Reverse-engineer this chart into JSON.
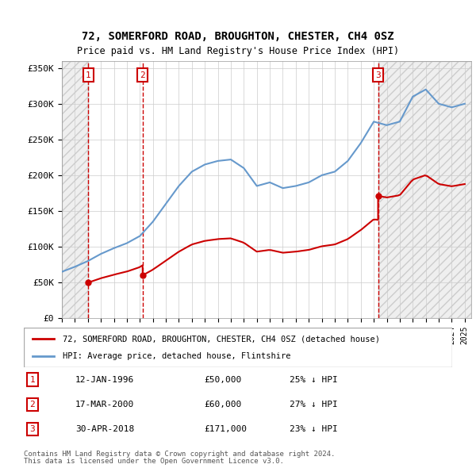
{
  "title": "72, SOMERFORD ROAD, BROUGHTON, CHESTER, CH4 0SZ",
  "subtitle": "Price paid vs. HM Land Registry's House Price Index (HPI)",
  "ylabel_ticks": [
    "£0",
    "£50K",
    "£100K",
    "£150K",
    "£200K",
    "£250K",
    "£300K",
    "£350K"
  ],
  "ytick_vals": [
    0,
    50000,
    100000,
    150000,
    200000,
    250000,
    300000,
    350000
  ],
  "ylim": [
    0,
    360000
  ],
  "xlim_start": 1994.0,
  "xlim_end": 2025.5,
  "sales": [
    {
      "num": 1,
      "date": "12-JAN-1996",
      "price": 50000,
      "year": 1996.04
    },
    {
      "num": 2,
      "date": "17-MAR-2000",
      "price": 60000,
      "year": 2000.21
    },
    {
      "num": 3,
      "date": "30-APR-2018",
      "price": 171000,
      "year": 2018.33
    }
  ],
  "legend_line1": "72, SOMERFORD ROAD, BROUGHTON, CHESTER, CH4 0SZ (detached house)",
  "legend_line2": "HPI: Average price, detached house, Flintshire",
  "footer1": "Contains HM Land Registry data © Crown copyright and database right 2024.",
  "footer2": "This data is licensed under the Open Government Licence v3.0.",
  "hpi_color": "#6699cc",
  "price_color": "#cc0000",
  "sale_marker_color": "#cc0000",
  "vline_color": "#cc0000",
  "box_color": "#cc0000",
  "hatch_color": "#dddddd",
  "grid_color": "#cccccc",
  "bg_color": "#ffffff",
  "hatch_bg": "#e8e8e8",
  "table_entries": [
    {
      "num": 1,
      "date": "12-JAN-1996",
      "price": "£50,000",
      "pct": "25% ↓ HPI"
    },
    {
      "num": 2,
      "date": "17-MAR-2000",
      "price": "£60,000",
      "pct": "27% ↓ HPI"
    },
    {
      "num": 3,
      "date": "30-APR-2018",
      "price": "£171,000",
      "pct": "23% ↓ HPI"
    }
  ]
}
